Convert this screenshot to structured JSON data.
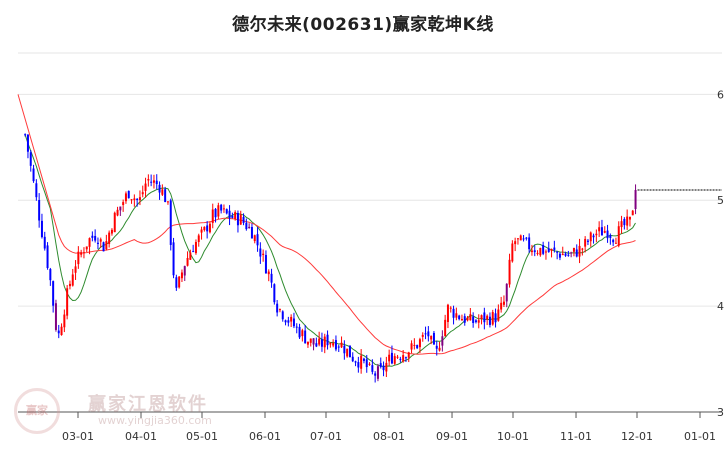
{
  "chart_data": {
    "type": "candlestick",
    "title": "德尔未来(002631)赢家乾坤K线",
    "x_ticks": [
      "03-01",
      "04-01",
      "05-01",
      "06-01",
      "07-01",
      "08-01",
      "09-01",
      "10-01",
      "11-01",
      "12-01",
      "01-01"
    ],
    "y_ticks": [
      "3",
      "4",
      "5",
      "6"
    ],
    "ylim": [
      3.0,
      6.4
    ],
    "grid": true,
    "y_axis_position": "right",
    "close_series": [
      {
        "date": "02-04",
        "close": 5.62
      },
      {
        "date": "02-10",
        "close": 4.95
      },
      {
        "date": "02-16",
        "close": 4.3
      },
      {
        "date": "02-20",
        "close": 3.68
      },
      {
        "date": "02-24",
        "close": 4.05
      },
      {
        "date": "02-28",
        "close": 4.38
      },
      {
        "date": "03-06",
        "close": 4.62
      },
      {
        "date": "03-10",
        "close": 4.68
      },
      {
        "date": "03-14",
        "close": 4.55
      },
      {
        "date": "03-18",
        "close": 4.8
      },
      {
        "date": "03-22",
        "close": 4.95
      },
      {
        "date": "03-26",
        "close": 5.08
      },
      {
        "date": "03-31",
        "close": 4.98
      },
      {
        "date": "04-04",
        "close": 5.2
      },
      {
        "date": "04-10",
        "close": 5.14
      },
      {
        "date": "04-14",
        "close": 4.98
      },
      {
        "date": "04-18",
        "close": 4.1
      },
      {
        "date": "04-22",
        "close": 4.38
      },
      {
        "date": "04-26",
        "close": 4.55
      },
      {
        "date": "05-02",
        "close": 4.7
      },
      {
        "date": "05-06",
        "close": 4.85
      },
      {
        "date": "05-10",
        "close": 4.9
      },
      {
        "date": "05-14",
        "close": 4.85
      },
      {
        "date": "05-20",
        "close": 4.82
      },
      {
        "date": "05-26",
        "close": 4.7
      },
      {
        "date": "05-30",
        "close": 4.5
      },
      {
        "date": "06-03",
        "close": 4.3
      },
      {
        "date": "06-07",
        "close": 4.0
      },
      {
        "date": "06-12",
        "close": 3.88
      },
      {
        "date": "06-17",
        "close": 3.78
      },
      {
        "date": "06-22",
        "close": 3.68
      },
      {
        "date": "06-27",
        "close": 3.62
      },
      {
        "date": "07-02",
        "close": 3.68
      },
      {
        "date": "07-08",
        "close": 3.65
      },
      {
        "date": "07-14",
        "close": 3.52
      },
      {
        "date": "07-20",
        "close": 3.45
      },
      {
        "date": "07-24",
        "close": 3.35
      },
      {
        "date": "07-28",
        "close": 3.38
      },
      {
        "date": "08-02",
        "close": 3.52
      },
      {
        "date": "08-08",
        "close": 3.56
      },
      {
        "date": "08-14",
        "close": 3.62
      },
      {
        "date": "08-20",
        "close": 3.75
      },
      {
        "date": "08-24",
        "close": 3.52
      },
      {
        "date": "08-30",
        "close": 3.98
      },
      {
        "date": "09-05",
        "close": 3.9
      },
      {
        "date": "09-11",
        "close": 3.85
      },
      {
        "date": "09-17",
        "close": 3.88
      },
      {
        "date": "09-23",
        "close": 3.9
      },
      {
        "date": "09-27",
        "close": 4.05
      },
      {
        "date": "10-01",
        "close": 4.62
      },
      {
        "date": "10-05",
        "close": 4.6
      },
      {
        "date": "10-11",
        "close": 4.55
      },
      {
        "date": "10-17",
        "close": 4.52
      },
      {
        "date": "10-23",
        "close": 4.5
      },
      {
        "date": "10-29",
        "close": 4.48
      },
      {
        "date": "11-04",
        "close": 4.55
      },
      {
        "date": "11-10",
        "close": 4.68
      },
      {
        "date": "11-16",
        "close": 4.72
      },
      {
        "date": "11-20",
        "close": 4.65
      },
      {
        "date": "11-24",
        "close": 4.75
      },
      {
        "date": "11-28",
        "close": 4.8
      },
      {
        "date": "12-01",
        "close": 5.25
      }
    ],
    "ma_short_color": "#2e8b2e",
    "ma_long_color": "#ff3b3b",
    "up_color": "#ff0000",
    "down_color": "#0000ff",
    "signal_color": "#800080",
    "last_price_line_color": "#000000"
  },
  "watermark": {
    "logo_text": "赢家",
    "name": "赢家江恩软件",
    "url": "www.yingjia360.com"
  }
}
